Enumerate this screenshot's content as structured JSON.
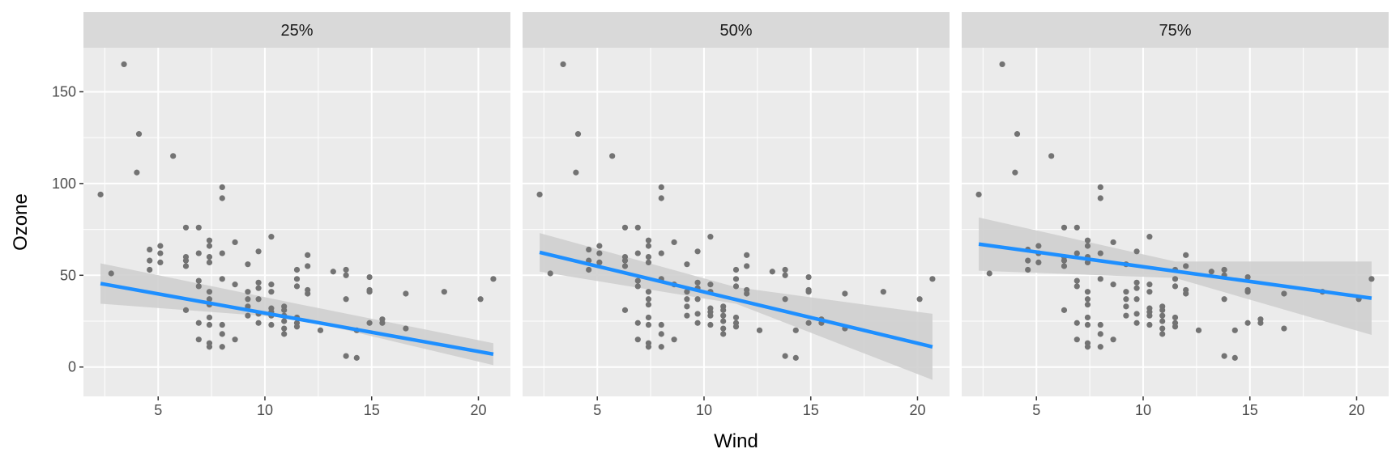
{
  "chart_data": {
    "type": "scatter",
    "xlabel": "Wind",
    "ylabel": "Ozone",
    "xlim": [
      1.5,
      21.5
    ],
    "ylim": [
      -16,
      174
    ],
    "x_ticks": [
      5,
      10,
      15,
      20
    ],
    "y_ticks": [
      0,
      50,
      100,
      150
    ],
    "grid": true,
    "colors": {
      "panel_bg": "#EBEBEB",
      "strip_bg": "#D9D9D9",
      "grid_major": "#FFFFFF",
      "point": "#737373",
      "line": "#1E8FFF",
      "ribbon": "#CFCFCF"
    },
    "points": [
      [
        2.3,
        94
      ],
      [
        2.8,
        51
      ],
      [
        3.4,
        165
      ],
      [
        4.0,
        106
      ],
      [
        4.1,
        127
      ],
      [
        4.6,
        64
      ],
      [
        4.6,
        58
      ],
      [
        4.6,
        53
      ],
      [
        5.1,
        66
      ],
      [
        5.1,
        62
      ],
      [
        5.1,
        57
      ],
      [
        5.7,
        115
      ],
      [
        6.3,
        76
      ],
      [
        6.3,
        60
      ],
      [
        6.3,
        58
      ],
      [
        6.3,
        55
      ],
      [
        6.3,
        31
      ],
      [
        6.9,
        76
      ],
      [
        6.9,
        62
      ],
      [
        6.9,
        47
      ],
      [
        6.9,
        44
      ],
      [
        6.9,
        24
      ],
      [
        6.9,
        15
      ],
      [
        7.4,
        69
      ],
      [
        7.4,
        66
      ],
      [
        7.4,
        60
      ],
      [
        7.4,
        57
      ],
      [
        7.4,
        41
      ],
      [
        7.4,
        37
      ],
      [
        7.4,
        34
      ],
      [
        7.4,
        27
      ],
      [
        7.4,
        23
      ],
      [
        7.4,
        13
      ],
      [
        7.4,
        11
      ],
      [
        8.0,
        98
      ],
      [
        8.0,
        92
      ],
      [
        8.0,
        62
      ],
      [
        8.0,
        48
      ],
      [
        8.0,
        23
      ],
      [
        8.0,
        18
      ],
      [
        8.0,
        11
      ],
      [
        8.6,
        68
      ],
      [
        8.6,
        45
      ],
      [
        8.6,
        15
      ],
      [
        9.2,
        56
      ],
      [
        9.2,
        41
      ],
      [
        9.2,
        37
      ],
      [
        9.2,
        33
      ],
      [
        9.2,
        28
      ],
      [
        9.7,
        63
      ],
      [
        9.7,
        46
      ],
      [
        9.7,
        43
      ],
      [
        9.7,
        37
      ],
      [
        9.7,
        29
      ],
      [
        9.7,
        24
      ],
      [
        10.3,
        71
      ],
      [
        10.3,
        45
      ],
      [
        10.3,
        41
      ],
      [
        10.3,
        32
      ],
      [
        10.3,
        30
      ],
      [
        10.3,
        28
      ],
      [
        10.3,
        23
      ],
      [
        10.9,
        33
      ],
      [
        10.9,
        31
      ],
      [
        10.9,
        28
      ],
      [
        10.9,
        25
      ],
      [
        10.9,
        21
      ],
      [
        10.9,
        18
      ],
      [
        11.5,
        53
      ],
      [
        11.5,
        48
      ],
      [
        11.5,
        44
      ],
      [
        11.5,
        27
      ],
      [
        11.5,
        24
      ],
      [
        11.5,
        22
      ],
      [
        12.0,
        61
      ],
      [
        12.0,
        55
      ],
      [
        12.0,
        42
      ],
      [
        12.0,
        40
      ],
      [
        12.6,
        20
      ],
      [
        13.2,
        52
      ],
      [
        13.8,
        53
      ],
      [
        13.8,
        50
      ],
      [
        13.8,
        37
      ],
      [
        13.8,
        6
      ],
      [
        14.3,
        20
      ],
      [
        14.3,
        5
      ],
      [
        14.9,
        49
      ],
      [
        14.9,
        42
      ],
      [
        14.9,
        41
      ],
      [
        14.9,
        24
      ],
      [
        15.5,
        26
      ],
      [
        15.5,
        24
      ],
      [
        16.6,
        40
      ],
      [
        16.6,
        21
      ],
      [
        18.4,
        41
      ],
      [
        20.1,
        37
      ],
      [
        20.7,
        48
      ]
    ],
    "panels": [
      {
        "strip": "25%",
        "fit": {
          "x1": 2.3,
          "y1": 45.5,
          "x2": 20.7,
          "y2": 7.0
        },
        "band": {
          "low_left": 34.5,
          "high_left": 56.5,
          "low_mid": 26.5,
          "high_mid": 34.5,
          "low_right": 1.0,
          "high_right": 13.0
        }
      },
      {
        "strip": "50%",
        "fit": {
          "x1": 2.3,
          "y1": 62.5,
          "x2": 20.7,
          "y2": 11.0
        },
        "band": {
          "low_left": 52.0,
          "high_left": 73.0,
          "low_mid": 34.5,
          "high_mid": 43.5,
          "low_right": -7.0,
          "high_right": 29.0
        }
      },
      {
        "strip": "75%",
        "fit": {
          "x1": 2.3,
          "y1": 67.0,
          "x2": 20.7,
          "y2": 37.5
        },
        "band": {
          "low_left": 52.5,
          "high_left": 81.5,
          "low_mid": 48.5,
          "high_mid": 57.5,
          "low_right": 17.5,
          "high_right": 57.5
        }
      }
    ]
  }
}
